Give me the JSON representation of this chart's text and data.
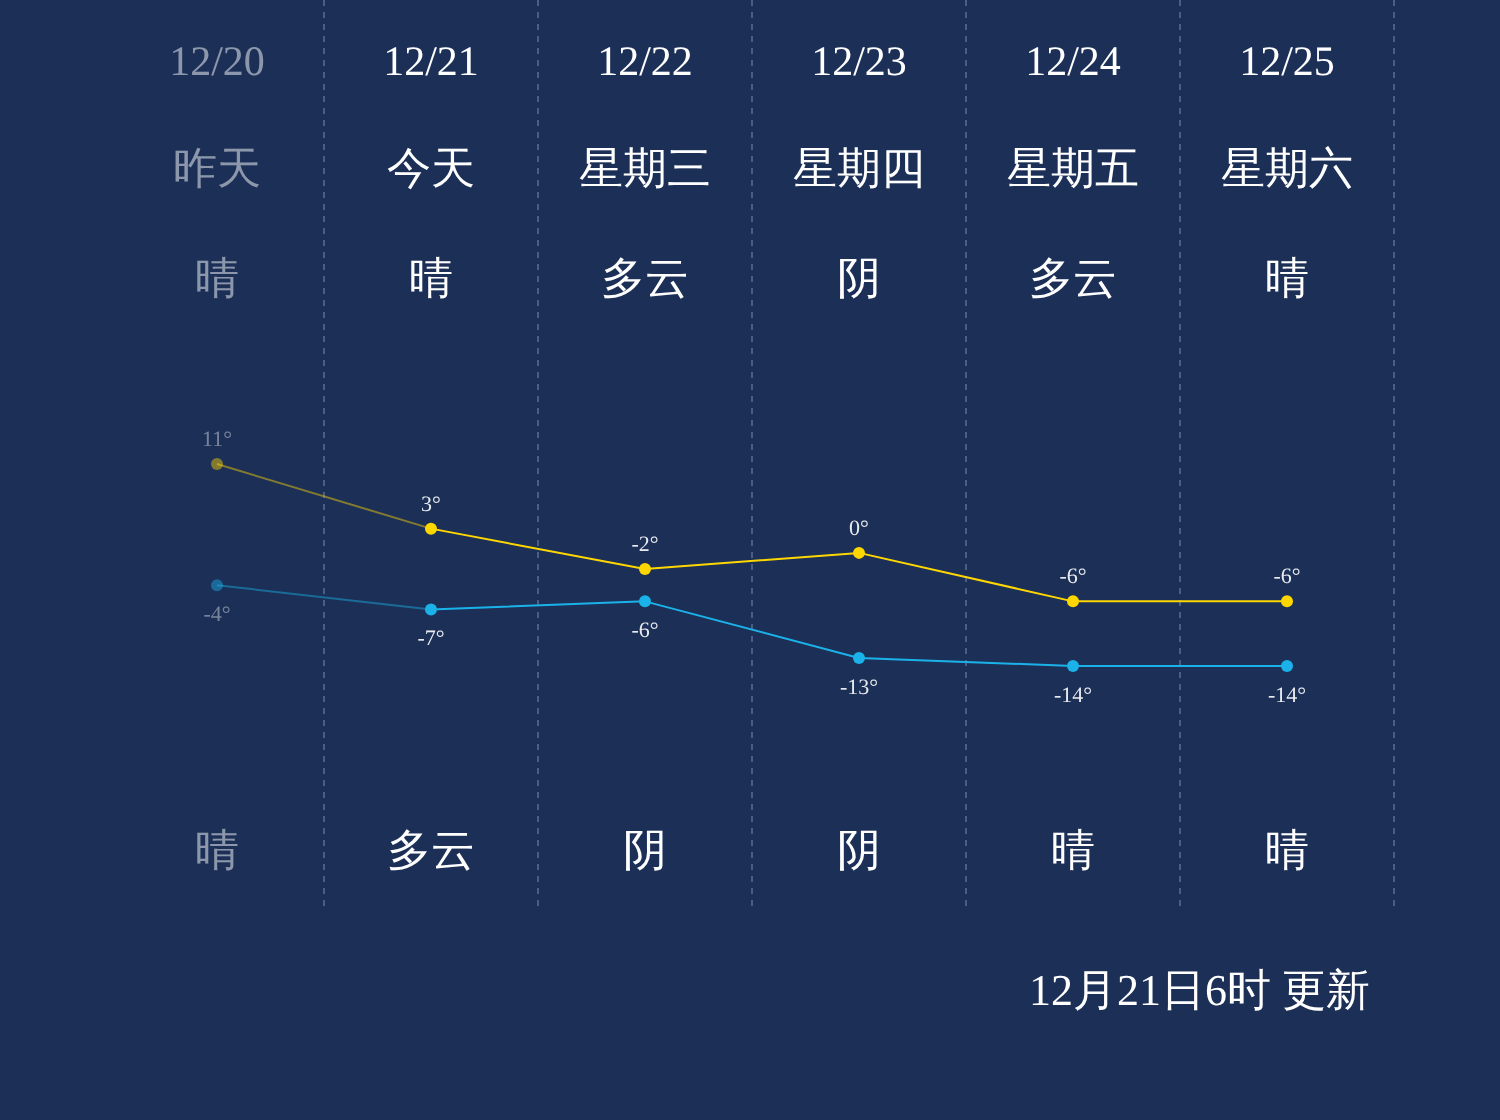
{
  "chart_data": {
    "type": "line",
    "categories": [
      "12/20",
      "12/21",
      "12/22",
      "12/23",
      "12/24",
      "12/25"
    ],
    "series": [
      {
        "color": "#ffd700",
        "values": [
          11,
          3,
          -2,
          0,
          -6,
          -6
        ],
        "value_labels": [
          "11°",
          "3°",
          "-2°",
          "0°",
          "-6°",
          "-6°"
        ]
      },
      {
        "color": "#1ab2e8",
        "values": [
          -4,
          -7,
          -6,
          -13,
          -14,
          -14
        ],
        "value_labels": [
          "-4°",
          "-7°",
          "-6°",
          "-13°",
          "-14°",
          "-14°"
        ]
      }
    ],
    "annotations": [
      "昨天",
      "今天",
      "星期三",
      "星期四",
      "星期五",
      "星期六",
      "晴",
      "晴",
      "多云",
      "阴",
      "多云",
      "晴",
      "晴",
      "多云",
      "阴",
      "阴",
      "晴",
      "晴",
      "12月21日6时 更新"
    ],
    "grid": "x",
    "marker": "circle"
  }
}
